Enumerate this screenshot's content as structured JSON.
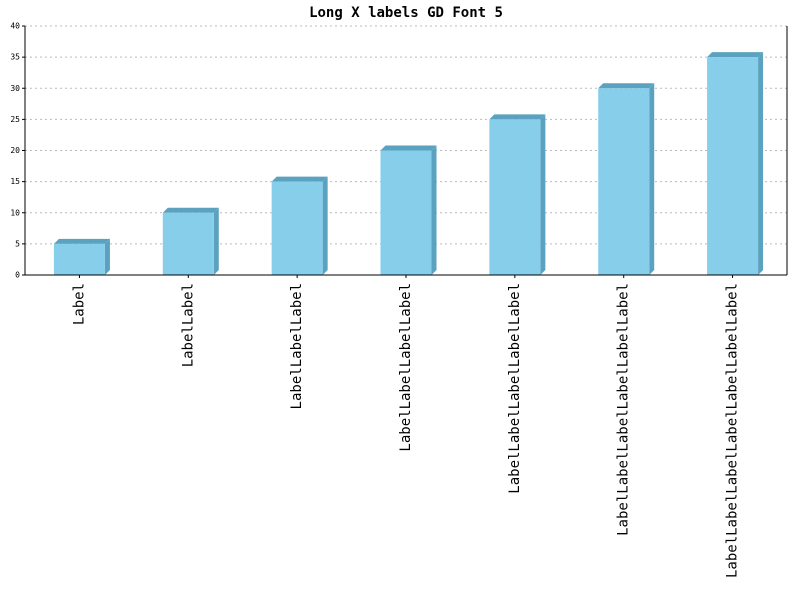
{
  "chart_data": {
    "type": "bar",
    "title": "Long X labels GD Font 5",
    "categories": [
      "Label",
      "LabelLabel",
      "LabelLabelLabel",
      "LabelLabelLabelLabel",
      "LabelLabelLabelLabelLabel",
      "LabelLabelLabelLabelLabelLabel",
      "LabelLabelLabelLabelLabelLabelLabel"
    ],
    "values": [
      5,
      10,
      15,
      20,
      25,
      30,
      35
    ],
    "color": "#87ceeb",
    "shade_color": "#5aa2bf",
    "ylim": [
      0,
      40
    ],
    "yticks": [
      0,
      5,
      10,
      15,
      20,
      25,
      30,
      35,
      40
    ],
    "grid": true
  }
}
